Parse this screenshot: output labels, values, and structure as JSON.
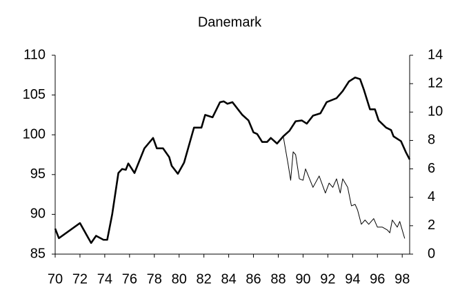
{
  "chart_data": {
    "type": "line",
    "title": "Danemark",
    "xlim": [
      70,
      98.6
    ],
    "xticks": [
      70,
      72,
      74,
      76,
      78,
      80,
      82,
      84,
      86,
      88,
      90,
      92,
      94,
      96,
      98
    ],
    "ylim": [
      85,
      110
    ],
    "yticks": [
      85,
      90,
      95,
      100,
      105,
      110
    ],
    "y2lim": [
      0,
      14
    ],
    "y2ticks": [
      0,
      2,
      4,
      6,
      8,
      10,
      12,
      14
    ],
    "series": [
      {
        "color": "#000000",
        "width": 2.6,
        "x": [
          70.0,
          70.3,
          72.0,
          72.9,
          73.3,
          73.9,
          74.2,
          74.6,
          75.1,
          75.4,
          75.7,
          75.9,
          76.4,
          77.2,
          77.9,
          78.2,
          78.7,
          79.2,
          79.4,
          79.9,
          80.4,
          81.2,
          81.8,
          82.1,
          82.7,
          83.3,
          83.6,
          83.9,
          84.3,
          84.9,
          85.1,
          85.6,
          86.0,
          86.3,
          86.7,
          87.1,
          87.4,
          87.9,
          88.4,
          88.9,
          89.4,
          89.9,
          90.3,
          90.8,
          91.4,
          91.9,
          92.7,
          93.2,
          93.7,
          94.2,
          94.6,
          94.9,
          95.4,
          95.8,
          96.1,
          96.7,
          97.1,
          97.3,
          97.9,
          98.3,
          98.6
        ],
        "values": [
          88.2,
          87.0,
          88.9,
          86.4,
          87.3,
          86.8,
          86.8,
          90.0,
          95.2,
          95.7,
          95.6,
          96.4,
          95.2,
          98.3,
          99.6,
          98.3,
          98.3,
          97.2,
          96.1,
          95.1,
          96.5,
          100.9,
          100.9,
          102.5,
          102.2,
          104.1,
          104.2,
          103.9,
          104.1,
          102.9,
          102.5,
          101.8,
          100.3,
          100.1,
          99.1,
          99.1,
          99.6,
          98.9,
          99.8,
          100.5,
          101.7,
          101.8,
          101.4,
          102.4,
          102.7,
          104.1,
          104.6,
          105.5,
          106.7,
          107.2,
          107.0,
          105.7,
          103.2,
          103.2,
          101.8,
          100.9,
          100.6,
          99.8,
          99.2,
          97.8,
          96.9
        ]
      },
      {
        "color": "#000000",
        "width": 1,
        "axis": "y2",
        "x": [
          88.4,
          88.8,
          89.0,
          89.2,
          89.4,
          89.7,
          90.0,
          90.2,
          90.8,
          91.3,
          91.8,
          92.1,
          92.4,
          92.7,
          93.0,
          93.2,
          93.6,
          93.9,
          94.2,
          94.4,
          94.7,
          95.0,
          95.3,
          95.7,
          96.0,
          96.4,
          96.8,
          97.0,
          97.2,
          97.6,
          97.8,
          98.2
        ],
        "values": [
          8.3,
          6.3,
          5.2,
          7.2,
          7.0,
          5.3,
          5.2,
          6.0,
          4.7,
          5.5,
          4.3,
          5.0,
          4.7,
          5.3,
          4.3,
          5.3,
          4.7,
          3.4,
          3.5,
          3.1,
          2.1,
          2.4,
          2.1,
          2.5,
          1.9,
          1.9,
          1.7,
          1.5,
          2.4,
          1.9,
          2.3,
          1.1
        ]
      }
    ]
  }
}
